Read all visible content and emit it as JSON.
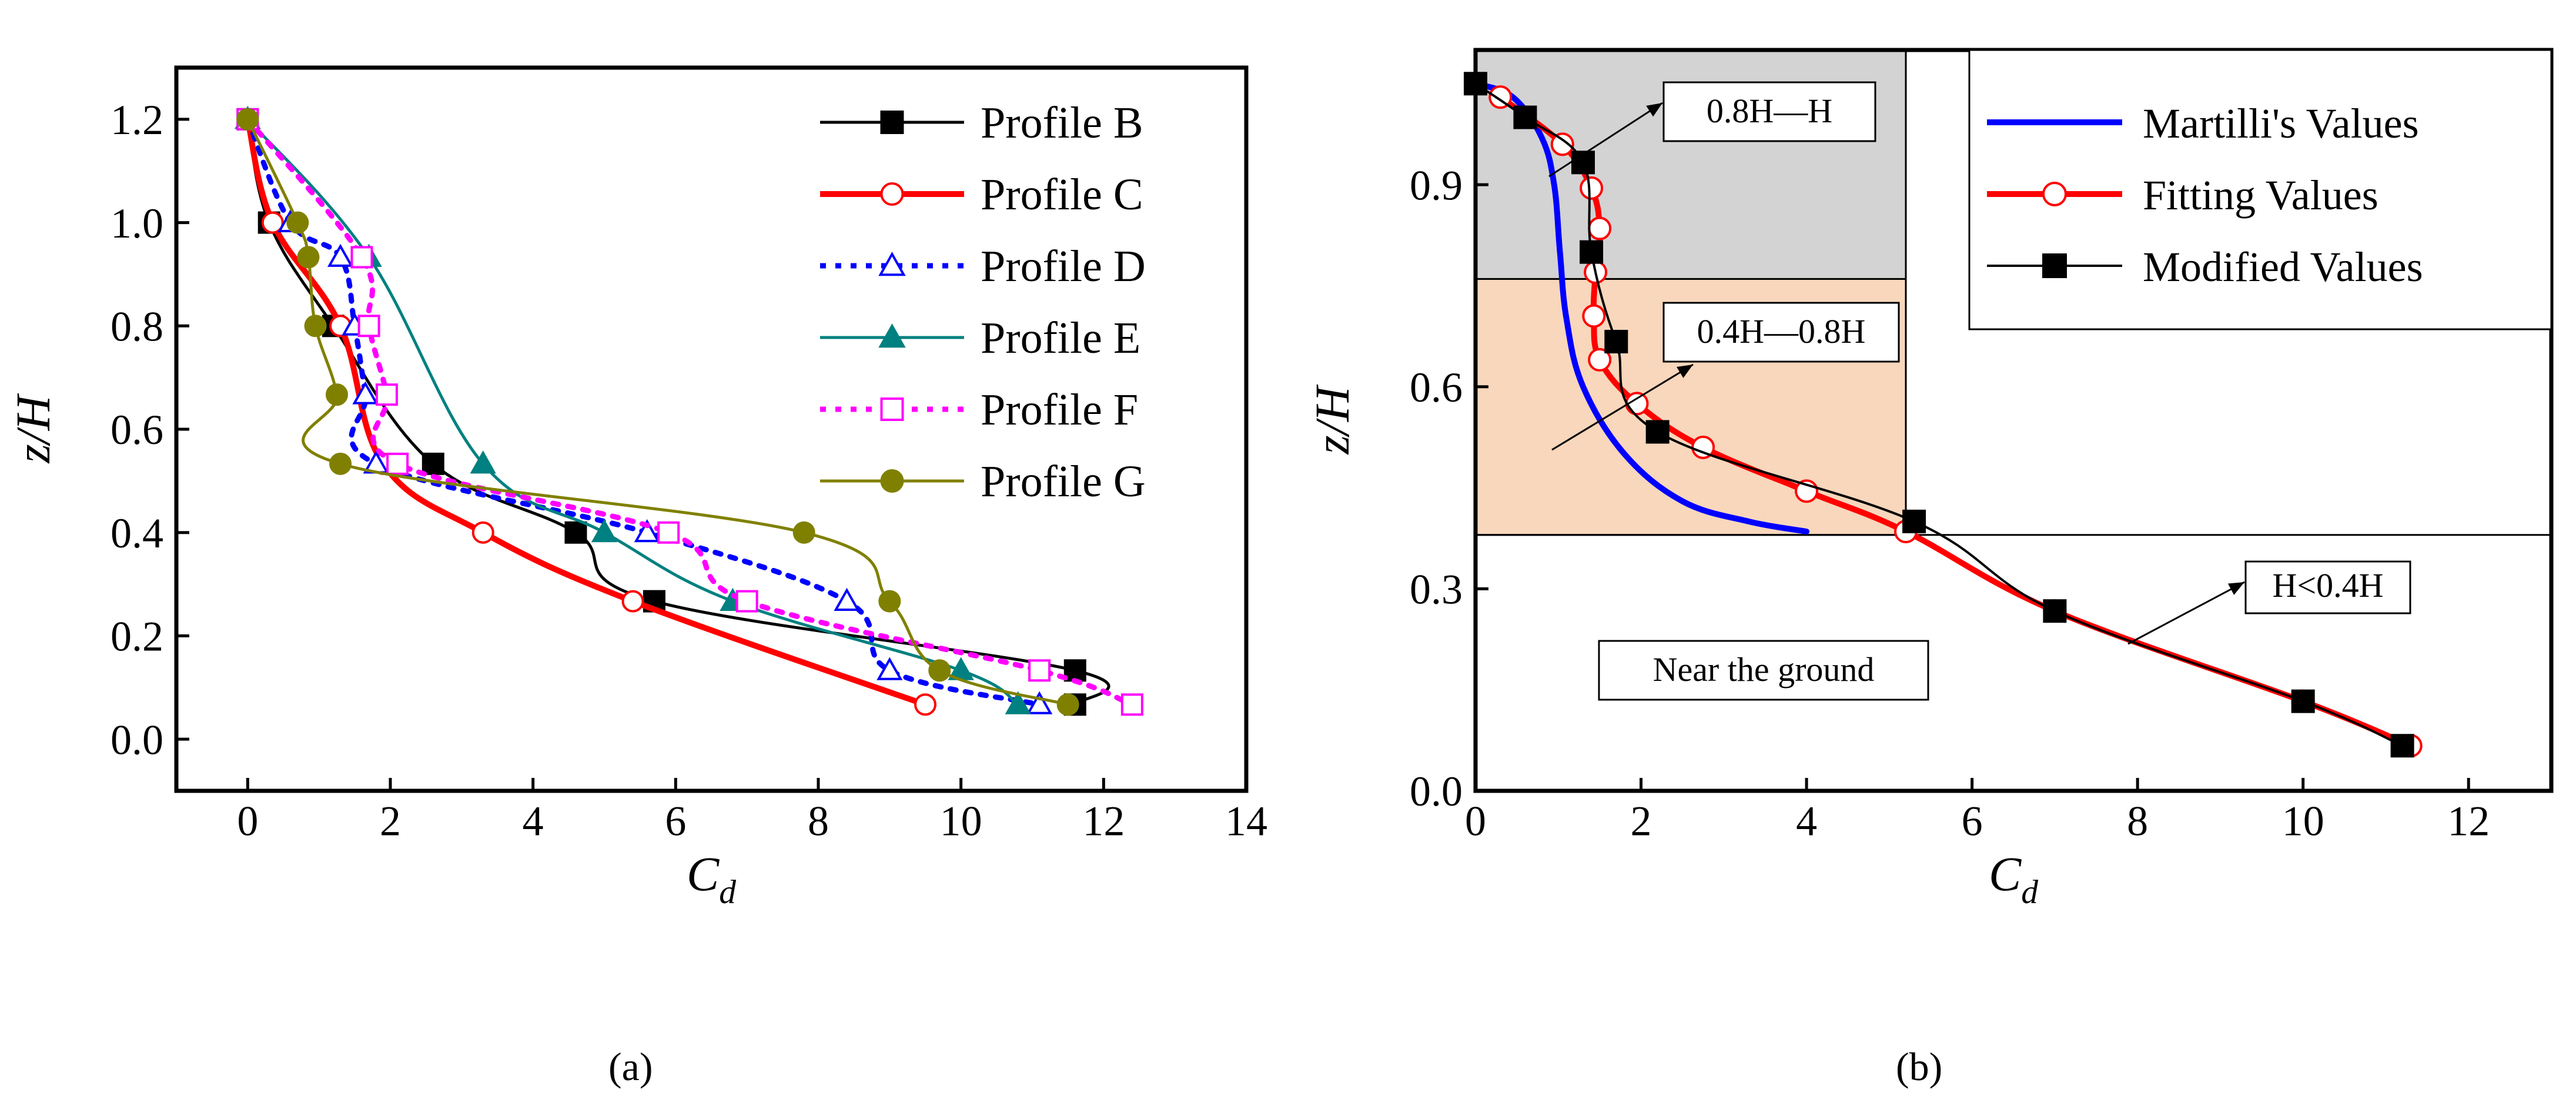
{
  "captions": [
    "(a)",
    "(b)"
  ],
  "chart_data": [
    {
      "type": "line",
      "xlabel": "C",
      "xlabel_sub": "d",
      "ylabel": "z/H",
      "xlim": [
        -1,
        14
      ],
      "ylim": [
        -0.1,
        1.3
      ],
      "xticks": [
        0,
        2,
        4,
        6,
        8,
        10,
        12,
        14
      ],
      "yticks": [
        0.0,
        0.2,
        0.4,
        0.6,
        0.8,
        1.0,
        1.2
      ],
      "xticklabels": [
        "0",
        "2",
        "4",
        "6",
        "8",
        "10",
        "12",
        "14"
      ],
      "yticklabels": [
        "0.0",
        "0.2",
        "0.4",
        "0.6",
        "0.8",
        "1.0",
        "1.2"
      ],
      "legend_position": "top-right",
      "series": [
        {
          "name": "Profile B",
          "color": "#000000",
          "line": "solid",
          "marker": "filled-square",
          "x": [
            0.0,
            0.3,
            1.2,
            2.6,
            4.6,
            5.7,
            11.6,
            11.6
          ],
          "y": [
            1.2,
            1.0,
            0.8,
            0.533,
            0.4,
            0.267,
            0.133,
            0.067
          ]
        },
        {
          "name": "Profile C",
          "color": "#ff0000",
          "line": "solid",
          "marker": "open-circle",
          "x": [
            0.0,
            0.35,
            1.3,
            1.9,
            3.3,
            5.4,
            9.5
          ],
          "y": [
            1.2,
            1.0,
            0.8,
            0.533,
            0.4,
            0.267,
            0.067
          ]
        },
        {
          "name": "Profile D",
          "color": "#0000ff",
          "line": "dotted",
          "marker": "open-triangle",
          "x": [
            0.0,
            0.6,
            1.3,
            1.5,
            1.65,
            1.8,
            5.6,
            8.4,
            9.0,
            11.1
          ],
          "y": [
            1.2,
            1.0,
            0.933,
            0.8,
            0.667,
            0.533,
            0.4,
            0.267,
            0.133,
            0.067
          ]
        },
        {
          "name": "Profile E",
          "color": "#008080",
          "line": "solid",
          "marker": "filled-triangle",
          "x": [
            0.0,
            1.7,
            3.3,
            5.0,
            6.8,
            10.0,
            10.8
          ],
          "y": [
            1.2,
            0.933,
            0.533,
            0.4,
            0.267,
            0.133,
            0.067
          ]
        },
        {
          "name": "Profile F",
          "color": "#ff00ff",
          "line": "dotted",
          "marker": "open-square",
          "x": [
            0.0,
            1.6,
            1.7,
            1.95,
            2.1,
            5.9,
            7.0,
            11.1,
            12.4
          ],
          "y": [
            1.2,
            0.933,
            0.8,
            0.667,
            0.533,
            0.4,
            0.267,
            0.133,
            0.067
          ]
        },
        {
          "name": "Profile G",
          "color": "#808000",
          "line": "solid",
          "marker": "filled-circle",
          "x": [
            0.0,
            0.7,
            0.85,
            0.95,
            1.25,
            1.3,
            7.8,
            9.0,
            9.7,
            11.5
          ],
          "y": [
            1.2,
            1.0,
            0.933,
            0.8,
            0.667,
            0.533,
            0.4,
            0.267,
            0.133,
            0.067
          ]
        }
      ]
    },
    {
      "type": "line",
      "xlabel": "C",
      "xlabel_sub": "d",
      "ylabel": "z/H",
      "xlim": [
        0,
        13
      ],
      "ylim": [
        0.0,
        1.1
      ],
      "xticks": [
        0,
        2,
        4,
        6,
        8,
        10,
        12
      ],
      "yticks": [
        0.0,
        0.3,
        0.6,
        0.9
      ],
      "xticklabels": [
        "0",
        "2",
        "4",
        "6",
        "8",
        "10",
        "12"
      ],
      "yticklabels": [
        "0.0",
        "0.3",
        "0.6",
        "0.9"
      ],
      "legend_position": "top-right",
      "regions": [
        {
          "label": "0.8H—H",
          "y_range": [
            0.76,
            1.1
          ],
          "color": "#d3d3d3"
        },
        {
          "label": "0.4H—0.8H",
          "y_range": [
            0.38,
            0.76
          ],
          "color": "#f8d7bc"
        },
        {
          "label": "H<0.4H"
        },
        {
          "label": "Near the ground"
        }
      ],
      "series": [
        {
          "name": "Martilli's Values",
          "color": "#0000ff",
          "line": "solid",
          "marker": "none",
          "x": [
            0.0,
            0.45,
            0.8,
            0.95,
            1.02,
            1.1,
            1.3,
            1.8,
            2.5,
            3.3,
            4.0
          ],
          "y": [
            1.05,
            1.03,
            0.97,
            0.9,
            0.8,
            0.7,
            0.6,
            0.5,
            0.43,
            0.4,
            0.385
          ]
        },
        {
          "name": "Fitting Values",
          "color": "#ff0000",
          "line": "solid",
          "marker": "open-circle",
          "x": [
            0.3,
            1.05,
            1.4,
            1.5,
            1.45,
            1.43,
            1.5,
            1.95,
            2.75,
            4.0,
            5.2,
            7.0,
            10.0,
            11.3
          ],
          "y": [
            1.03,
            0.96,
            0.895,
            0.835,
            0.77,
            0.705,
            0.64,
            0.575,
            0.51,
            0.445,
            0.385,
            0.267,
            0.133,
            0.067
          ]
        },
        {
          "name": "Modified Values",
          "color": "#000000",
          "line": "solid",
          "marker": "filled-square",
          "x": [
            0.0,
            0.6,
            1.3,
            1.4,
            1.7,
            2.2,
            5.3,
            7.0,
            10.0,
            11.2
          ],
          "y": [
            1.05,
            1.0,
            0.933,
            0.8,
            0.667,
            0.533,
            0.4,
            0.267,
            0.133,
            0.067
          ]
        }
      ]
    }
  ]
}
